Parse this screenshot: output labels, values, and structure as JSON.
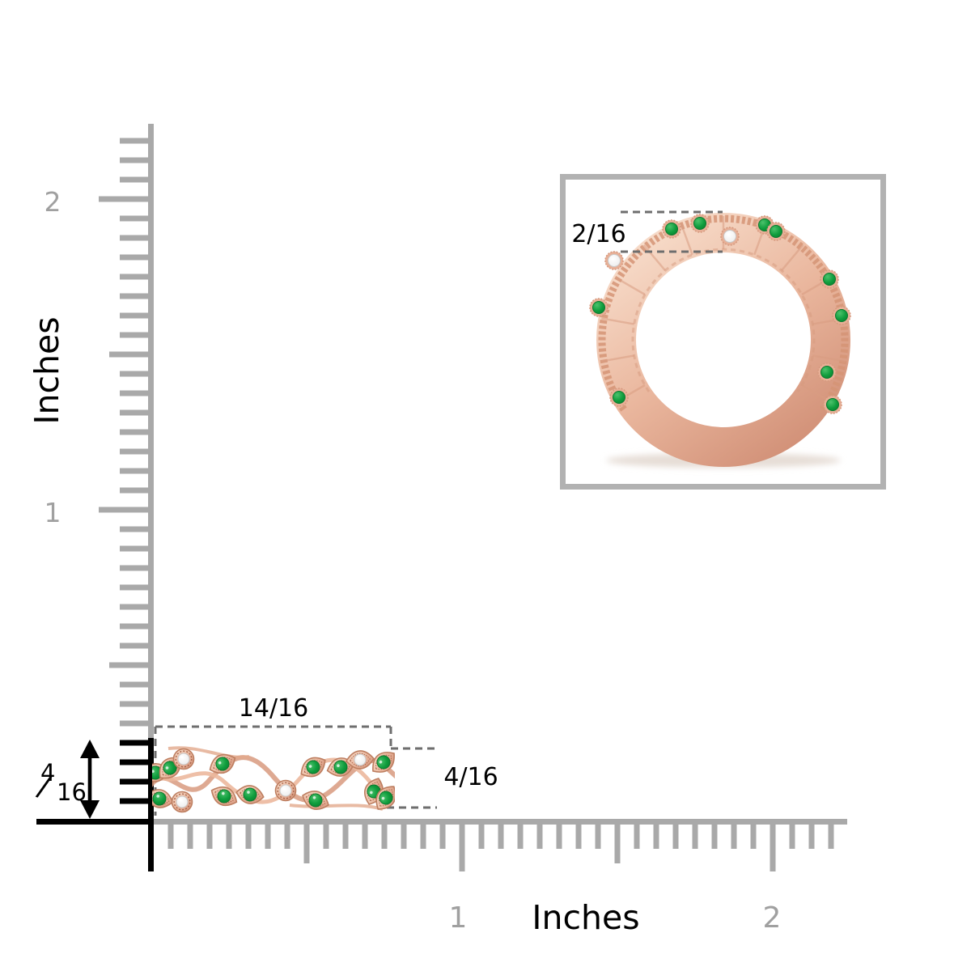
{
  "page": {
    "background": "#ffffff"
  },
  "colors": {
    "ruler": "#a9a9a9",
    "ruler_numbers": "#a0a0a0",
    "emphasis_black": "#000000",
    "dashed_line": "#6e6e6e",
    "inset_border": "#b2b2b2",
    "gold_light": "#f7dcca",
    "gold_mid": "#eab79e",
    "gold_dark": "#d29178",
    "gold_outline": "#bd7e60",
    "gold_deep": "#a8644a",
    "emerald_light": "#4cc26c",
    "emerald": "#0f9d3d",
    "emerald_dark": "#0a7a2e",
    "diamond_light": "#ffffff",
    "diamond": "#efefef",
    "diamond_edge": "#c9c9c9"
  },
  "vertical_ruler": {
    "unit_label": "Inches",
    "label_2": "2",
    "label_1": "1"
  },
  "horizontal_ruler": {
    "unit_label": "Inches",
    "label_1": "1",
    "label_2": "2"
  },
  "front_view": {
    "width_label": "14/16",
    "height_label": "4/16",
    "height_fraction": {
      "numerator": "4",
      "slash": "/",
      "denominator": "16"
    }
  },
  "profile_view": {
    "thickness_label": "2/16"
  }
}
